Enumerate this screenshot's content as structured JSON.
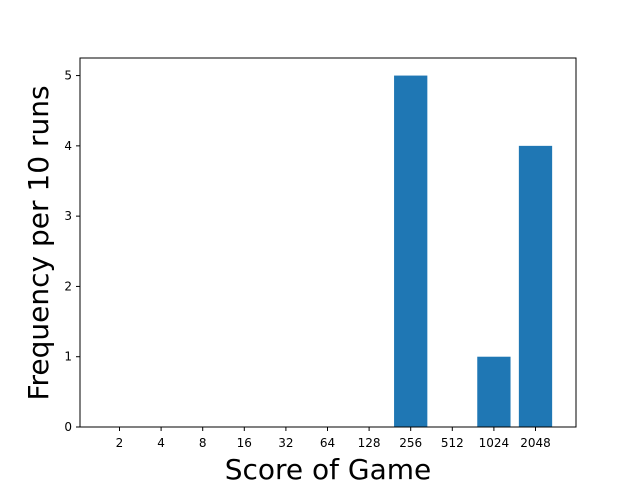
{
  "chart_data": {
    "type": "bar",
    "title": "",
    "xlabel": "Score of Game",
    "ylabel": "Frequency per 10 runs",
    "categories": [
      "2",
      "4",
      "8",
      "16",
      "32",
      "64",
      "128",
      "256",
      "512",
      "1024",
      "2048"
    ],
    "values": [
      0,
      0,
      0,
      0,
      0,
      0,
      0,
      5,
      0,
      1,
      4
    ],
    "ylim": [
      0,
      5.25
    ],
    "yticks": [
      "0",
      "1",
      "2",
      "3",
      "4",
      "5"
    ],
    "grid": false,
    "legend": "none",
    "bar_color": "#1f77b4"
  }
}
